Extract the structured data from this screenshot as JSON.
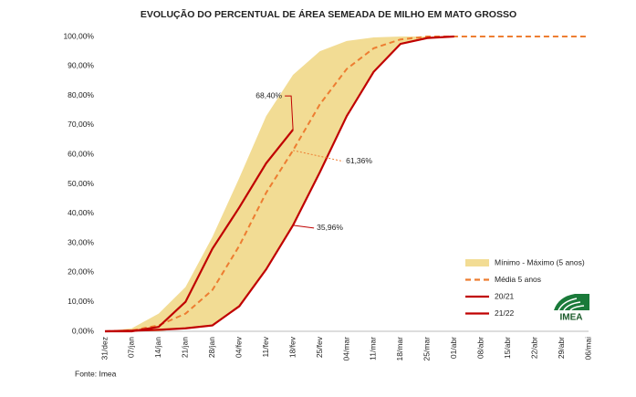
{
  "chart_data": {
    "type": "line",
    "title": "EVOLUÇÃO DO PERCENTUAL DE ÁREA SEMEADA DE MILHO EM MATO GROSSO",
    "categories": [
      "31/dez",
      "07/jan",
      "14/jan",
      "21/jan",
      "28/jan",
      "04/fev",
      "11/fev",
      "18/fev",
      "25/fev",
      "04/mar",
      "11/mar",
      "18/mar",
      "25/mar",
      "01/abr",
      "08/abr",
      "15/abr",
      "22/abr",
      "29/abr",
      "06/mai"
    ],
    "ylim": [
      0,
      100
    ],
    "yticks": [
      {
        "value": 0,
        "label": "0,00%"
      },
      {
        "value": 10,
        "label": "10,00%"
      },
      {
        "value": 20,
        "label": "20,00%"
      },
      {
        "value": 30,
        "label": "30,00%"
      },
      {
        "value": 40,
        "label": "40,00%"
      },
      {
        "value": 50,
        "label": "50,00%"
      },
      {
        "value": 60,
        "label": "60,00%"
      },
      {
        "value": 70,
        "label": "70,00%"
      },
      {
        "value": 80,
        "label": "80,00%"
      },
      {
        "value": 90,
        "label": "90,00%"
      },
      {
        "value": 100,
        "label": "100,00%"
      }
    ],
    "series": [
      {
        "name": "Mínimo - Máximo (5 anos)",
        "style": "band",
        "color": "#f2dc94",
        "values": [
          0,
          1,
          6,
          15,
          32,
          52,
          73,
          87,
          95,
          98.5,
          99.7,
          100,
          100,
          100,
          null,
          null,
          null,
          null,
          null
        ],
        "lower": [
          0,
          0,
          0,
          1,
          2,
          8,
          21,
          36,
          54,
          73,
          88,
          97.5,
          99.5,
          100,
          null,
          null,
          null,
          null,
          null
        ]
      },
      {
        "name": "Média 5 anos",
        "style": "dashed",
        "color": "#ed7d31",
        "values": [
          0,
          0.3,
          2,
          6,
          14,
          29,
          47,
          61.36,
          77,
          89,
          96,
          99,
          100,
          100,
          100,
          100,
          100,
          100,
          100
        ],
        "value_labels": [
          null,
          null,
          null,
          null,
          null,
          null,
          null,
          "61,36%",
          null,
          null,
          null,
          null,
          null,
          null,
          null,
          null,
          null,
          null,
          null
        ]
      },
      {
        "name": "20/21",
        "style": "solid",
        "color": "#c00000",
        "values": [
          0,
          0.2,
          0.5,
          1,
          2,
          8.5,
          21,
          35.96,
          54,
          73,
          88,
          97.5,
          99.5,
          100,
          null,
          null,
          null,
          null,
          null
        ],
        "value_labels": [
          null,
          null,
          null,
          null,
          null,
          null,
          null,
          "35,96%",
          null,
          null,
          null,
          null,
          null,
          null,
          null,
          null,
          null,
          null,
          null
        ]
      },
      {
        "name": "21/22",
        "style": "solid",
        "color": "#c00000",
        "values": [
          0,
          0,
          1.5,
          10,
          28,
          42,
          57,
          68.4,
          null,
          null,
          null,
          null,
          null,
          null,
          null,
          null,
          null,
          null,
          null
        ],
        "value_labels": [
          null,
          null,
          null,
          null,
          null,
          null,
          null,
          "68,40%",
          null,
          null,
          null,
          null,
          null,
          null,
          null,
          null,
          null,
          null,
          null
        ]
      }
    ],
    "source": "Fonte: Imea",
    "logo_text": "IMEA"
  }
}
